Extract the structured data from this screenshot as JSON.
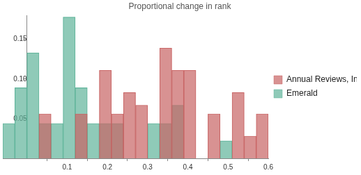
{
  "chart_data": {
    "type": "histogram",
    "title": "Proportional change in rank",
    "bins": [
      -0.06,
      -0.03,
      0,
      0.03,
      0.06,
      0.09,
      0.12,
      0.15,
      0.18,
      0.21,
      0.24,
      0.27,
      0.3,
      0.33,
      0.36,
      0.39,
      0.42,
      0.45,
      0.48,
      0.51,
      0.54,
      0.57,
      0.6
    ],
    "series": [
      {
        "name": "Annual Reviews, Inc.",
        "color": "#c86464",
        "values": [
          0,
          0,
          0,
          0.056,
          0,
          0,
          0.056,
          0,
          0.111,
          0.056,
          0.083,
          0.067,
          0,
          0.139,
          0.111,
          0.111,
          0,
          0.056,
          0,
          0.083,
          0.028,
          0.056
        ]
      },
      {
        "name": "Emerald",
        "color": "#5fb49a",
        "values": [
          0.044,
          0.089,
          0.133,
          0.044,
          0.044,
          0.178,
          0.089,
          0.044,
          0.044,
          0.044,
          0,
          0,
          0.044,
          0.044,
          0.067,
          0,
          0,
          0,
          0.022,
          0,
          0,
          0
        ]
      }
    ],
    "xlim": [
      -0.06,
      0.6
    ],
    "xticks": [
      0.1,
      0.2,
      0.3,
      0.4,
      0.5,
      0.6
    ],
    "ylim": [
      0,
      0.18
    ],
    "yticks": [
      0.05,
      {
        "value": 0.1,
        "label": "0.10"
      },
      0.15
    ],
    "grid": false,
    "legend": "right"
  }
}
